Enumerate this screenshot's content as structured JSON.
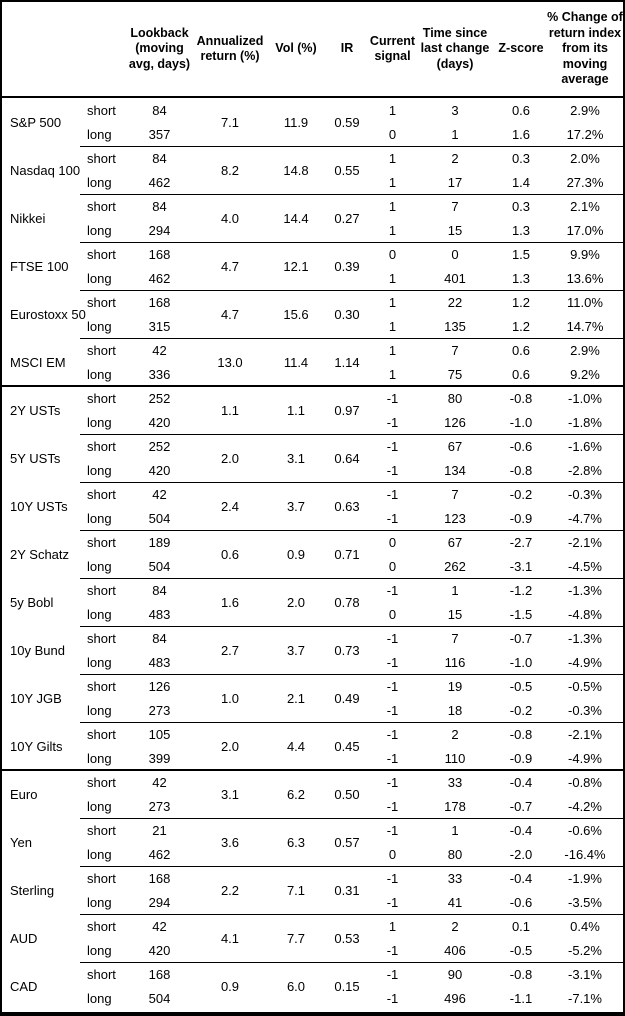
{
  "table": {
    "headers": {
      "asset": "",
      "horizon": "",
      "lookback": "Lookback\n(moving\navg, days)",
      "annualized_return": "Annualized\nreturn (%)",
      "vol": "Vol (%)",
      "ir": "IR",
      "current_signal": "Current\nsignal",
      "time_since": "Time since\nlast change\n(days)",
      "zscore": "Z-score",
      "pct_change": "% Change of\nreturn index\nfrom its\nmoving\naverage"
    },
    "groups": [
      {
        "asset": "S&P 500",
        "thick_separator": false,
        "annualized_return": "7.1",
        "vol": "11.9",
        "ir": "0.59",
        "rows": [
          {
            "horizon": "short",
            "lookback": "84",
            "signal": "1",
            "time": "3",
            "zscore": "0.6",
            "pct": "2.9%"
          },
          {
            "horizon": "long",
            "lookback": "357",
            "signal": "0",
            "time": "1",
            "zscore": "1.6",
            "pct": "17.2%"
          }
        ]
      },
      {
        "asset": "Nasdaq 100",
        "thick_separator": false,
        "annualized_return": "8.2",
        "vol": "14.8",
        "ir": "0.55",
        "rows": [
          {
            "horizon": "short",
            "lookback": "84",
            "signal": "1",
            "time": "2",
            "zscore": "0.3",
            "pct": "2.0%"
          },
          {
            "horizon": "long",
            "lookback": "462",
            "signal": "1",
            "time": "17",
            "zscore": "1.4",
            "pct": "27.3%"
          }
        ]
      },
      {
        "asset": "Nikkei",
        "thick_separator": false,
        "annualized_return": "4.0",
        "vol": "14.4",
        "ir": "0.27",
        "rows": [
          {
            "horizon": "short",
            "lookback": "84",
            "signal": "1",
            "time": "7",
            "zscore": "0.3",
            "pct": "2.1%"
          },
          {
            "horizon": "long",
            "lookback": "294",
            "signal": "1",
            "time": "15",
            "zscore": "1.3",
            "pct": "17.0%"
          }
        ]
      },
      {
        "asset": "FTSE 100",
        "thick_separator": false,
        "annualized_return": "4.7",
        "vol": "12.1",
        "ir": "0.39",
        "rows": [
          {
            "horizon": "short",
            "lookback": "168",
            "signal": "0",
            "time": "0",
            "zscore": "1.5",
            "pct": "9.9%"
          },
          {
            "horizon": "long",
            "lookback": "462",
            "signal": "1",
            "time": "401",
            "zscore": "1.3",
            "pct": "13.6%"
          }
        ]
      },
      {
        "asset": "Eurostoxx 50",
        "thick_separator": false,
        "annualized_return": "4.7",
        "vol": "15.6",
        "ir": "0.30",
        "rows": [
          {
            "horizon": "short",
            "lookback": "168",
            "signal": "1",
            "time": "22",
            "zscore": "1.2",
            "pct": "11.0%"
          },
          {
            "horizon": "long",
            "lookback": "315",
            "signal": "1",
            "time": "135",
            "zscore": "1.2",
            "pct": "14.7%"
          }
        ]
      },
      {
        "asset": "MSCI EM",
        "thick_separator": false,
        "annualized_return": "13.0",
        "vol": "11.4",
        "ir": "1.14",
        "rows": [
          {
            "horizon": "short",
            "lookback": "42",
            "signal": "1",
            "time": "7",
            "zscore": "0.6",
            "pct": "2.9%"
          },
          {
            "horizon": "long",
            "lookback": "336",
            "signal": "1",
            "time": "75",
            "zscore": "0.6",
            "pct": "9.2%"
          }
        ]
      },
      {
        "asset": "2Y USTs",
        "thick_separator": true,
        "annualized_return": "1.1",
        "vol": "1.1",
        "ir": "0.97",
        "rows": [
          {
            "horizon": "short",
            "lookback": "252",
            "signal": "-1",
            "time": "80",
            "zscore": "-0.8",
            "pct": "-1.0%"
          },
          {
            "horizon": "long",
            "lookback": "420",
            "signal": "-1",
            "time": "126",
            "zscore": "-1.0",
            "pct": "-1.8%"
          }
        ]
      },
      {
        "asset": "5Y USTs",
        "thick_separator": false,
        "annualized_return": "2.0",
        "vol": "3.1",
        "ir": "0.64",
        "rows": [
          {
            "horizon": "short",
            "lookback": "252",
            "signal": "-1",
            "time": "67",
            "zscore": "-0.6",
            "pct": "-1.6%"
          },
          {
            "horizon": "long",
            "lookback": "420",
            "signal": "-1",
            "time": "134",
            "zscore": "-0.8",
            "pct": "-2.8%"
          }
        ]
      },
      {
        "asset": "10Y USTs",
        "thick_separator": false,
        "annualized_return": "2.4",
        "vol": "3.7",
        "ir": "0.63",
        "rows": [
          {
            "horizon": "short",
            "lookback": "42",
            "signal": "-1",
            "time": "7",
            "zscore": "-0.2",
            "pct": "-0.3%"
          },
          {
            "horizon": "long",
            "lookback": "504",
            "signal": "-1",
            "time": "123",
            "zscore": "-0.9",
            "pct": "-4.7%"
          }
        ]
      },
      {
        "asset": "2Y Schatz",
        "thick_separator": false,
        "annualized_return": "0.6",
        "vol": "0.9",
        "ir": "0.71",
        "rows": [
          {
            "horizon": "short",
            "lookback": "189",
            "signal": "0",
            "time": "67",
            "zscore": "-2.7",
            "pct": "-2.1%"
          },
          {
            "horizon": "long",
            "lookback": "504",
            "signal": "0",
            "time": "262",
            "zscore": "-3.1",
            "pct": "-4.5%"
          }
        ]
      },
      {
        "asset": "5y Bobl",
        "thick_separator": false,
        "annualized_return": "1.6",
        "vol": "2.0",
        "ir": "0.78",
        "rows": [
          {
            "horizon": "short",
            "lookback": "84",
            "signal": "-1",
            "time": "1",
            "zscore": "-1.2",
            "pct": "-1.3%"
          },
          {
            "horizon": "long",
            "lookback": "483",
            "signal": "0",
            "time": "15",
            "zscore": "-1.5",
            "pct": "-4.8%"
          }
        ]
      },
      {
        "asset": "10y Bund",
        "thick_separator": false,
        "annualized_return": "2.7",
        "vol": "3.7",
        "ir": "0.73",
        "rows": [
          {
            "horizon": "short",
            "lookback": "84",
            "signal": "-1",
            "time": "7",
            "zscore": "-0.7",
            "pct": "-1.3%"
          },
          {
            "horizon": "long",
            "lookback": "483",
            "signal": "-1",
            "time": "116",
            "zscore": "-1.0",
            "pct": "-4.9%"
          }
        ]
      },
      {
        "asset": "10Y JGB",
        "thick_separator": false,
        "annualized_return": "1.0",
        "vol": "2.1",
        "ir": "0.49",
        "rows": [
          {
            "horizon": "short",
            "lookback": "126",
            "signal": "-1",
            "time": "19",
            "zscore": "-0.5",
            "pct": "-0.5%"
          },
          {
            "horizon": "long",
            "lookback": "273",
            "signal": "-1",
            "time": "18",
            "zscore": "-0.2",
            "pct": "-0.3%"
          }
        ]
      },
      {
        "asset": "10Y Gilts",
        "thick_separator": false,
        "annualized_return": "2.0",
        "vol": "4.4",
        "ir": "0.45",
        "rows": [
          {
            "horizon": "short",
            "lookback": "105",
            "signal": "-1",
            "time": "2",
            "zscore": "-0.8",
            "pct": "-2.1%"
          },
          {
            "horizon": "long",
            "lookback": "399",
            "signal": "-1",
            "time": "110",
            "zscore": "-0.9",
            "pct": "-4.9%"
          }
        ]
      },
      {
        "asset": "Euro",
        "thick_separator": true,
        "annualized_return": "3.1",
        "vol": "6.2",
        "ir": "0.50",
        "rows": [
          {
            "horizon": "short",
            "lookback": "42",
            "signal": "-1",
            "time": "33",
            "zscore": "-0.4",
            "pct": "-0.8%"
          },
          {
            "horizon": "long",
            "lookback": "273",
            "signal": "-1",
            "time": "178",
            "zscore": "-0.7",
            "pct": "-4.2%"
          }
        ]
      },
      {
        "asset": "Yen",
        "thick_separator": false,
        "annualized_return": "3.6",
        "vol": "6.3",
        "ir": "0.57",
        "rows": [
          {
            "horizon": "short",
            "lookback": "21",
            "signal": "-1",
            "time": "1",
            "zscore": "-0.4",
            "pct": "-0.6%"
          },
          {
            "horizon": "long",
            "lookback": "462",
            "signal": "0",
            "time": "80",
            "zscore": "-2.0",
            "pct": "-16.4%"
          }
        ]
      },
      {
        "asset": "Sterling",
        "thick_separator": false,
        "annualized_return": "2.2",
        "vol": "7.1",
        "ir": "0.31",
        "rows": [
          {
            "horizon": "short",
            "lookback": "168",
            "signal": "-1",
            "time": "33",
            "zscore": "-0.4",
            "pct": "-1.9%"
          },
          {
            "horizon": "long",
            "lookback": "294",
            "signal": "-1",
            "time": "41",
            "zscore": "-0.6",
            "pct": "-3.5%"
          }
        ]
      },
      {
        "asset": "AUD",
        "thick_separator": false,
        "annualized_return": "4.1",
        "vol": "7.7",
        "ir": "0.53",
        "rows": [
          {
            "horizon": "short",
            "lookback": "42",
            "signal": "1",
            "time": "2",
            "zscore": "0.1",
            "pct": "0.4%"
          },
          {
            "horizon": "long",
            "lookback": "420",
            "signal": "-1",
            "time": "406",
            "zscore": "-0.5",
            "pct": "-5.2%"
          }
        ]
      },
      {
        "asset": "CAD",
        "thick_separator": false,
        "annualized_return": "0.9",
        "vol": "6.0",
        "ir": "0.15",
        "rows": [
          {
            "horizon": "short",
            "lookback": "168",
            "signal": "-1",
            "time": "90",
            "zscore": "-0.8",
            "pct": "-3.1%"
          },
          {
            "horizon": "long",
            "lookback": "504",
            "signal": "-1",
            "time": "496",
            "zscore": "-1.1",
            "pct": "-7.1%"
          }
        ]
      }
    ]
  }
}
